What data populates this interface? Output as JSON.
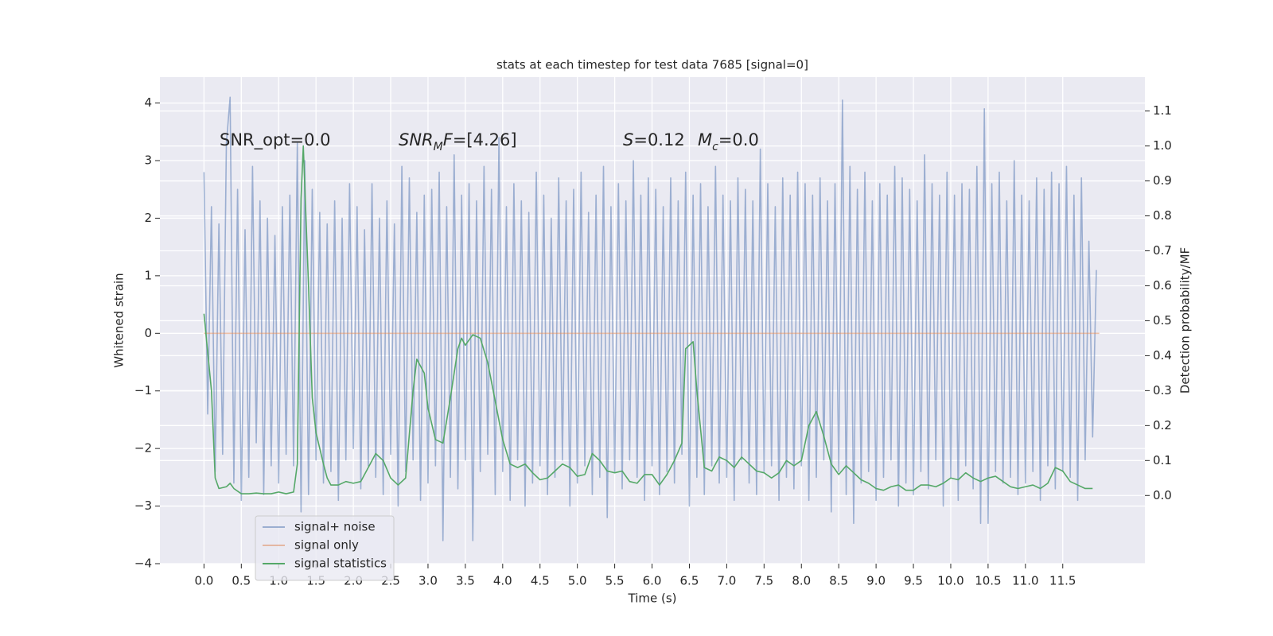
{
  "chart_data": {
    "type": "line",
    "title": "stats at each timestep for test data 7685 [signal=0]",
    "xlabel": "Time (s)",
    "ylabel": "Whitened strain",
    "y2label": "Detection probability/MF",
    "xlim": [
      -0.59,
      12.6
    ],
    "ylim": [
      -4.0,
      4.45
    ],
    "y2lim": [
      -0.195,
      1.197
    ],
    "xticks": [
      {
        "value": 0,
        "label": "0.0"
      },
      0.5,
      {
        "value": 1,
        "label": "1.0"
      },
      1.5,
      {
        "value": 2,
        "label": "2.0"
      },
      2.5,
      {
        "value": 3,
        "label": "3.0"
      },
      3.5,
      {
        "value": 4,
        "label": "4.0"
      },
      4.5,
      {
        "value": 5,
        "label": "5.0"
      },
      5.5,
      {
        "value": 6,
        "label": "6.0"
      },
      6.5,
      {
        "value": 7,
        "label": "7.0"
      },
      7.5,
      {
        "value": 8,
        "label": "8.0"
      },
      8.5,
      {
        "value": 9,
        "label": "9.0"
      },
      9.5,
      {
        "value": 10,
        "label": "10.0"
      },
      10.5,
      {
        "value": 11,
        "label": "11.0"
      },
      11.5
    ],
    "yticks": [
      {
        "value": -4,
        "label": "−4"
      },
      {
        "value": -3,
        "label": "−3"
      },
      {
        "value": -2,
        "label": "−2"
      },
      {
        "value": -1,
        "label": "−1"
      },
      0,
      1,
      2,
      3,
      4
    ],
    "y2ticks": [
      {
        "value": 0,
        "label": "0.0"
      },
      0.1,
      0.2,
      0.3,
      0.4,
      0.5,
      0.6,
      0.7,
      0.8,
      0.9,
      {
        "value": 1,
        "label": "1.0"
      },
      1.1
    ],
    "grid": true,
    "legend": "lower left",
    "background": "#eaeaf2",
    "annotations": [
      [
        {
          "text": "SNR_opt=0.0",
          "style": "normal"
        }
      ],
      [
        {
          "text": "SNR",
          "style": "italic"
        },
        {
          "text": "M",
          "style": "sub"
        },
        {
          "text": "F",
          "style": "italic"
        },
        {
          "text": "=[4.26]",
          "style": "normal"
        }
      ],
      [
        {
          "text": "S",
          "style": "italic"
        },
        {
          "text": "=0.12",
          "style": "normal"
        }
      ],
      [
        {
          "text": "M",
          "style": "italic"
        },
        {
          "text": "c",
          "style": "sub"
        },
        {
          "text": "=0.0",
          "style": "normal"
        }
      ]
    ],
    "series": [
      {
        "name": "signal+ noise",
        "color": "#4c72b0",
        "alpha": 0.5,
        "axis": "y",
        "x": [
          0,
          0.05,
          0.1,
          0.15,
          0.2,
          0.25,
          0.3,
          0.35,
          0.4,
          0.45,
          0.5,
          0.55,
          0.6,
          0.65,
          0.7,
          0.75,
          0.8,
          0.85,
          0.9,
          0.95,
          1,
          1.05,
          1.1,
          1.15,
          1.2,
          1.25,
          1.3,
          1.35,
          1.4,
          1.45,
          1.5,
          1.55,
          1.6,
          1.65,
          1.7,
          1.75,
          1.8,
          1.85,
          1.9,
          1.95,
          2,
          2.05,
          2.1,
          2.15,
          2.2,
          2.25,
          2.3,
          2.35,
          2.4,
          2.45,
          2.5,
          2.55,
          2.6,
          2.65,
          2.7,
          2.75,
          2.8,
          2.85,
          2.9,
          2.95,
          3,
          3.05,
          3.1,
          3.15,
          3.2,
          3.25,
          3.3,
          3.35,
          3.4,
          3.45,
          3.5,
          3.55,
          3.6,
          3.65,
          3.7,
          3.75,
          3.8,
          3.85,
          3.9,
          3.95,
          4,
          4.05,
          4.1,
          4.15,
          4.2,
          4.25,
          4.3,
          4.35,
          4.4,
          4.45,
          4.5,
          4.55,
          4.6,
          4.65,
          4.7,
          4.75,
          4.8,
          4.85,
          4.9,
          4.95,
          5,
          5.05,
          5.1,
          5.15,
          5.2,
          5.25,
          5.3,
          5.35,
          5.4,
          5.45,
          5.5,
          5.55,
          5.6,
          5.65,
          5.7,
          5.75,
          5.8,
          5.85,
          5.9,
          5.95,
          6,
          6.05,
          6.1,
          6.15,
          6.2,
          6.25,
          6.3,
          6.35,
          6.4,
          6.45,
          6.5,
          6.55,
          6.6,
          6.65,
          6.7,
          6.75,
          6.8,
          6.85,
          6.9,
          6.95,
          7,
          7.05,
          7.1,
          7.15,
          7.2,
          7.25,
          7.3,
          7.35,
          7.4,
          7.45,
          7.5,
          7.55,
          7.6,
          7.65,
          7.7,
          7.75,
          7.8,
          7.85,
          7.9,
          7.95,
          8,
          8.05,
          8.1,
          8.15,
          8.2,
          8.25,
          8.3,
          8.35,
          8.4,
          8.45,
          8.5,
          8.55,
          8.6,
          8.65,
          8.7,
          8.75,
          8.8,
          8.85,
          8.9,
          8.95,
          9,
          9.05,
          9.1,
          9.15,
          9.2,
          9.25,
          9.3,
          9.35,
          9.4,
          9.45,
          9.5,
          9.55,
          9.6,
          9.65,
          9.7,
          9.75,
          9.8,
          9.85,
          9.9,
          9.95,
          10,
          10.05,
          10.1,
          10.15,
          10.2,
          10.25,
          10.3,
          10.35,
          10.4,
          10.45,
          10.5,
          10.55,
          10.6,
          10.65,
          10.7,
          10.75,
          10.8,
          10.85,
          10.9,
          10.95,
          11,
          11.05,
          11.1,
          11.15,
          11.2,
          11.25,
          11.3,
          11.35,
          11.4,
          11.45,
          11.5,
          11.55,
          11.6,
          11.65,
          11.7,
          11.75,
          11.8,
          11.85,
          11.9,
          11.95
        ],
        "values": [
          2.8,
          -1.4,
          2.2,
          -2.4,
          1.9,
          -2.1,
          3.3,
          4.1,
          -2.6,
          2.5,
          -2.9,
          1.8,
          -2.5,
          2.9,
          -1.9,
          2.3,
          -2.8,
          2.0,
          -2.3,
          1.7,
          -2.6,
          2.2,
          -2.1,
          2.4,
          -2.3,
          3.3,
          -3.1,
          3.0,
          -2.8,
          2.5,
          -2.2,
          2.1,
          -2.6,
          1.9,
          -2.4,
          2.3,
          -2.9,
          2.0,
          -2.2,
          2.6,
          -2.0,
          2.2,
          -2.7,
          1.8,
          -2.3,
          2.6,
          -2.5,
          2.0,
          -2.8,
          2.3,
          -2.1,
          1.9,
          -3.0,
          2.9,
          -2.4,
          2.7,
          -2.2,
          2.1,
          -2.9,
          2.4,
          -2.6,
          2.5,
          -2.3,
          2.8,
          -3.6,
          2.2,
          -2.5,
          3.1,
          -2.7,
          2.4,
          -2.2,
          2.6,
          -3.6,
          2.3,
          -2.4,
          2.9,
          -2.1,
          2.5,
          -2.8,
          3.4,
          -2.4,
          2.2,
          -2.9,
          2.6,
          -2.2,
          2.3,
          -3.0,
          2.1,
          -2.6,
          2.8,
          -2.3,
          2.4,
          -2.8,
          2.0,
          -2.5,
          2.7,
          -2.2,
          2.3,
          -3.0,
          2.5,
          -2.6,
          2.8,
          -2.3,
          2.1,
          -2.8,
          2.4,
          -2.5,
          2.9,
          -3.2,
          2.2,
          -2.4,
          2.6,
          -2.7,
          2.3,
          -2.2,
          3.0,
          -2.5,
          2.4,
          -2.9,
          2.7,
          -2.3,
          2.5,
          -2.8,
          2.2,
          -2.4,
          2.7,
          -2.6,
          2.3,
          -2.1,
          2.8,
          -3.0,
          2.4,
          -2.5,
          2.6,
          -2.8,
          2.2,
          -2.3,
          2.9,
          -2.6,
          2.4,
          -2.5,
          2.3,
          -2.9,
          2.7,
          -2.2,
          2.5,
          -2.6,
          2.3,
          -2.8,
          3.2,
          -2.4,
          2.6,
          -2.3,
          2.2,
          -2.9,
          2.7,
          -2.5,
          2.4,
          -2.7,
          2.8,
          -2.3,
          2.6,
          -2.9,
          2.4,
          -2.5,
          2.7,
          -2.2,
          2.3,
          -3.1,
          2.6,
          -2.4,
          4.05,
          -2.8,
          2.9,
          -3.3,
          2.5,
          -2.6,
          2.8,
          -2.4,
          2.3,
          -2.9,
          2.6,
          -2.5,
          2.4,
          -2.2,
          2.9,
          -3.0,
          2.7,
          -2.6,
          2.5,
          -2.8,
          2.3,
          -2.4,
          3.1,
          -2.7,
          2.6,
          -2.2,
          2.4,
          -3.0,
          2.8,
          -2.5,
          2.4,
          -2.9,
          2.6,
          -2.3,
          2.5,
          -2.7,
          2.9,
          -3.3,
          3.9,
          -3.3,
          2.6,
          -2.4,
          2.8,
          -2.6,
          2.3,
          -2.5,
          3.0,
          -2.8,
          2.4,
          -2.6,
          2.3,
          -2.4,
          2.7,
          -2.9,
          2.5,
          -2.3,
          2.8,
          -2.7,
          2.6,
          -2.4,
          2.9,
          -2.5,
          2.4,
          -2.9,
          2.7,
          -2.2,
          1.6,
          -1.8,
          1.1
        ]
      },
      {
        "name": "signal only",
        "color": "#dd8452",
        "alpha": 0.5,
        "axis": "y",
        "x": [
          0,
          11.99
        ],
        "values": [
          0,
          0
        ]
      },
      {
        "name": "signal statistics",
        "color": "#55a868",
        "alpha": 1,
        "axis": "y2",
        "x": [
          0,
          0.1,
          0.15,
          0.2,
          0.3,
          0.35,
          0.4,
          0.5,
          0.6,
          0.7,
          0.8,
          0.9,
          1.0,
          1.1,
          1.2,
          1.25,
          1.3,
          1.33,
          1.4,
          1.45,
          1.5,
          1.6,
          1.65,
          1.7,
          1.8,
          1.9,
          2.0,
          2.1,
          2.2,
          2.3,
          2.4,
          2.5,
          2.6,
          2.7,
          2.8,
          2.85,
          2.95,
          3.0,
          3.1,
          3.2,
          3.3,
          3.4,
          3.45,
          3.5,
          3.6,
          3.7,
          3.8,
          3.9,
          4.0,
          4.1,
          4.2,
          4.3,
          4.4,
          4.5,
          4.6,
          4.7,
          4.8,
          4.9,
          5.0,
          5.1,
          5.2,
          5.3,
          5.4,
          5.5,
          5.6,
          5.7,
          5.8,
          5.9,
          6.0,
          6.1,
          6.2,
          6.3,
          6.4,
          6.45,
          6.55,
          6.6,
          6.7,
          6.8,
          6.9,
          7.0,
          7.1,
          7.2,
          7.3,
          7.4,
          7.5,
          7.6,
          7.7,
          7.8,
          7.9,
          8.0,
          8.1,
          8.2,
          8.3,
          8.4,
          8.5,
          8.6,
          8.7,
          8.8,
          8.9,
          9.0,
          9.1,
          9.2,
          9.3,
          9.4,
          9.5,
          9.6,
          9.7,
          9.8,
          9.9,
          10.0,
          10.1,
          10.2,
          10.3,
          10.4,
          10.5,
          10.6,
          10.7,
          10.8,
          10.9,
          11.0,
          11.1,
          11.2,
          11.3,
          11.4,
          11.5,
          11.6,
          11.7,
          11.8,
          11.9
        ],
        "values": [
          0.52,
          0.3,
          0.05,
          0.02,
          0.025,
          0.035,
          0.02,
          0.005,
          0.005,
          0.007,
          0.005,
          0.005,
          0.01,
          0.005,
          0.01,
          0.09,
          0.85,
          1.0,
          0.6,
          0.28,
          0.18,
          0.09,
          0.05,
          0.03,
          0.03,
          0.04,
          0.035,
          0.04,
          0.08,
          0.12,
          0.1,
          0.05,
          0.03,
          0.05,
          0.3,
          0.39,
          0.35,
          0.25,
          0.16,
          0.15,
          0.28,
          0.42,
          0.45,
          0.43,
          0.46,
          0.45,
          0.38,
          0.27,
          0.16,
          0.09,
          0.08,
          0.09,
          0.065,
          0.045,
          0.05,
          0.07,
          0.09,
          0.08,
          0.055,
          0.06,
          0.12,
          0.1,
          0.07,
          0.065,
          0.07,
          0.04,
          0.035,
          0.06,
          0.06,
          0.03,
          0.06,
          0.1,
          0.15,
          0.42,
          0.44,
          0.3,
          0.08,
          0.07,
          0.11,
          0.1,
          0.08,
          0.11,
          0.09,
          0.07,
          0.065,
          0.05,
          0.065,
          0.1,
          0.085,
          0.1,
          0.2,
          0.24,
          0.17,
          0.09,
          0.06,
          0.085,
          0.065,
          0.045,
          0.035,
          0.02,
          0.015,
          0.025,
          0.03,
          0.015,
          0.015,
          0.03,
          0.03,
          0.025,
          0.035,
          0.05,
          0.045,
          0.065,
          0.05,
          0.04,
          0.05,
          0.055,
          0.04,
          0.025,
          0.02,
          0.025,
          0.03,
          0.02,
          0.035,
          0.08,
          0.07,
          0.04,
          0.03,
          0.02,
          0.02
        ]
      }
    ]
  }
}
